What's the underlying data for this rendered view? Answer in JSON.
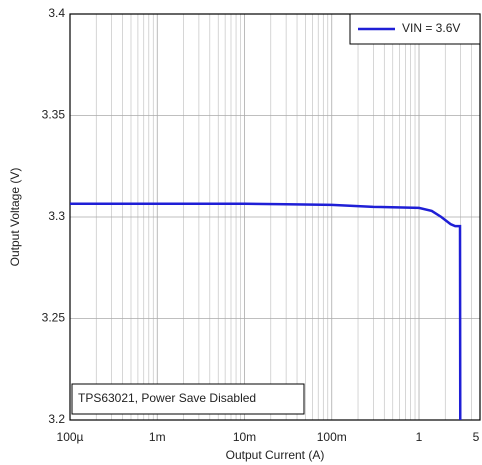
{
  "chart_data": {
    "type": "line",
    "x_label": "Output Current (A)",
    "y_label": "Output Voltage (V)",
    "annotation": "TPS63021, Power Save Disabled",
    "x": [
      0.0001,
      0.001,
      0.01,
      0.03,
      0.1,
      0.3,
      1,
      1.4,
      1.8,
      2.3,
      2.6,
      2.95,
      2.97
    ],
    "series": [
      {
        "name": "VIN = 3.6V",
        "color": "#1f1fd6",
        "values": [
          3.3065,
          3.3065,
          3.3065,
          3.3063,
          3.306,
          3.305,
          3.3045,
          3.303,
          3.3,
          3.2965,
          3.2955,
          3.2955,
          3.2
        ]
      }
    ],
    "xlim": [
      0.0001,
      5
    ],
    "ylim": [
      3.2,
      3.4
    ],
    "xticks": [
      {
        "value": 0.0001,
        "label": "100µ"
      },
      {
        "value": 0.001,
        "label": "1m"
      },
      {
        "value": 0.01,
        "label": "10m"
      },
      {
        "value": 0.1,
        "label": "100m"
      },
      1,
      5
    ],
    "yticks": [
      3.2,
      3.25,
      3.3,
      3.35,
      3.4
    ],
    "xscale": "log",
    "grid": true,
    "legend": "upper right"
  }
}
